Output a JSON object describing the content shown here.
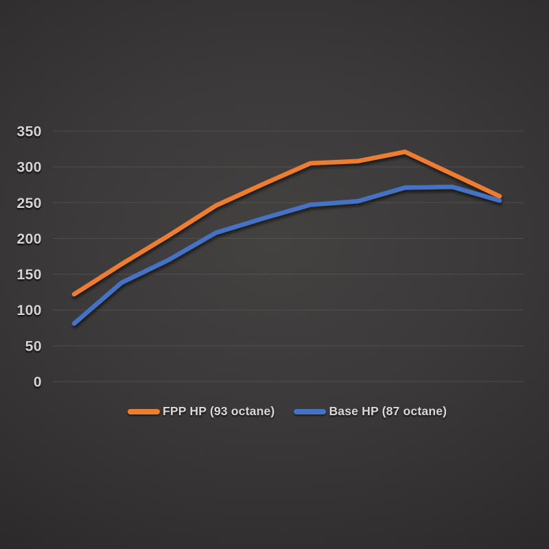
{
  "chart_data": {
    "type": "line",
    "title": "",
    "xlabel": "",
    "ylabel": "",
    "ylim": [
      0,
      350
    ],
    "yticks": [
      0,
      50,
      100,
      150,
      200,
      250,
      300,
      350
    ],
    "grid": true,
    "legend_position": "bottom",
    "x_tick_labels_visible": false,
    "series": [
      {
        "name": "FPP HP (93 octane)",
        "color": "#ED7D31",
        "values": [
          122,
          164,
          204,
          246,
          276,
          305,
          308,
          321,
          290,
          259
        ]
      },
      {
        "name": "Base HP (87 octane)",
        "color": "#4472C4",
        "values": [
          81,
          138,
          170,
          208,
          228,
          247,
          252,
          271,
          272,
          253
        ]
      }
    ]
  },
  "colors": {
    "background_center": "#413f3e",
    "background_edge": "#1b1a1a",
    "gridline": "#6a6a66",
    "tick_label": "#d6d4d2",
    "legend_text": "#dad8d6"
  }
}
